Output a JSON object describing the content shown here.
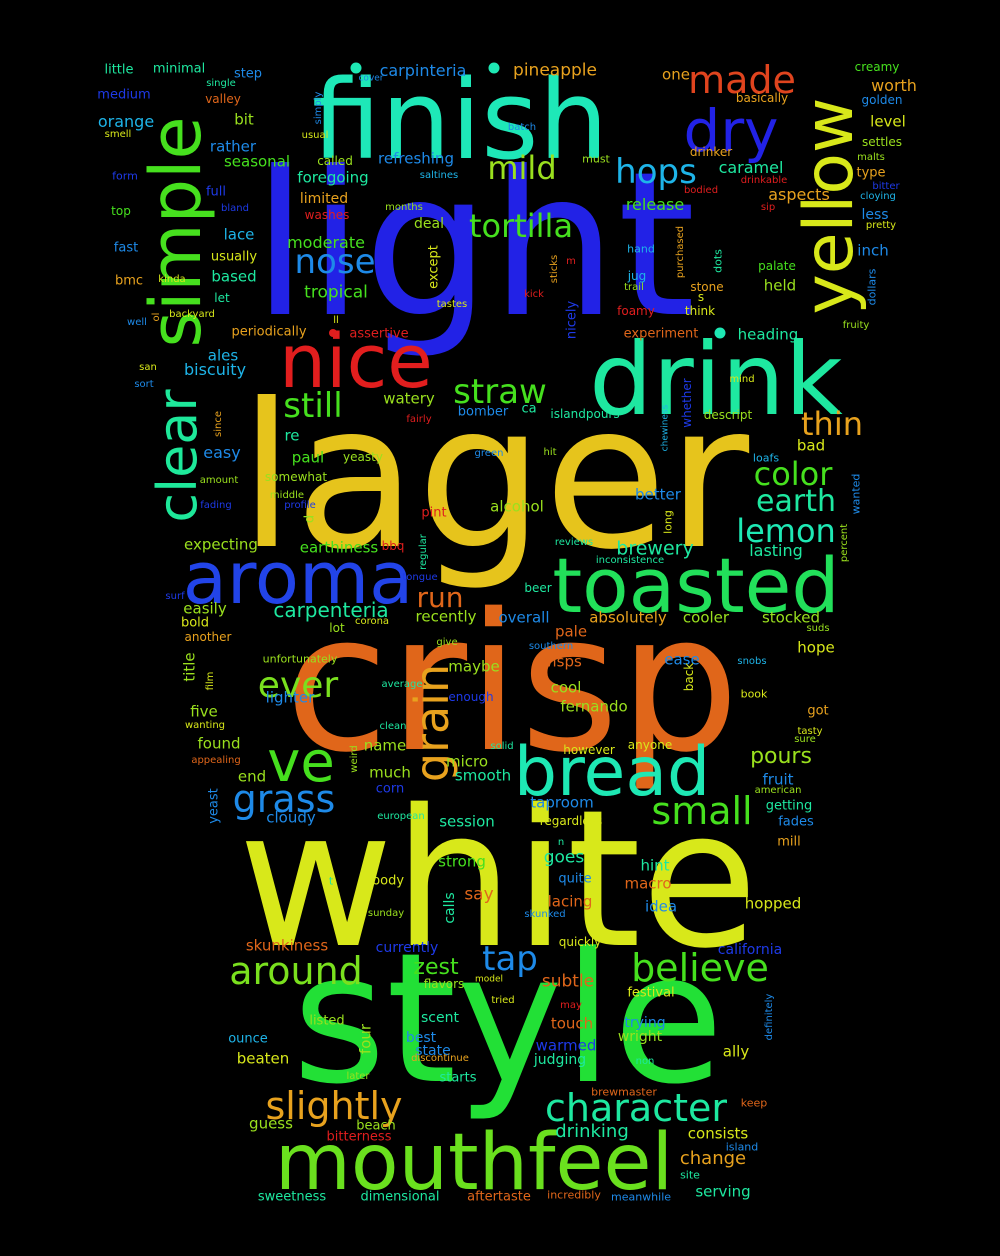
{
  "words": {
    "white": "white",
    "style": "style",
    "crisp": "crisp",
    "lager": "lager",
    "light": "light",
    "drink": "drink",
    "finish": "finish",
    "mouthfeel": "mouthfeel",
    "toasted": "toasted",
    "aroma": "aroma",
    "bread": "bread",
    "nice": "nice",
    "simple": "simple",
    "clear": "clear",
    "yellow": "yellow",
    "dry": "dry",
    "made": "made",
    "ve": "ve",
    "grass": "grass",
    "grain": "grain",
    "character": "character",
    "slightly": "slightly",
    "believe": "believe",
    "around": "around",
    "small": "small",
    "ever": "ever",
    "hops": "hops",
    "nose": "nose",
    "tortilla": "tortilla",
    "mild": "mild",
    "straw": "straw",
    "still": "still",
    "thin": "thin",
    "color": "color",
    "earth": "earth",
    "lemon": "lemon",
    "run": "run",
    "tap": "tap",
    "zest": "zest",
    "pours": "pours",
    "carpenteria": "carpenteria",
    "brewery": "brewery",
    "drinking": "drinking",
    "change": "change",
    "carpinteria": "carpinteria",
    "pineapple": "pineapple",
    "subtle": "subtle",
    "release": "release",
    "lasting": "lasting",
    "tropical": "tropical",
    "moderate": "moderate",
    "caramel": "caramel",
    "aspects": "aspects",
    "refreshing": "refreshing",
    "foregoing": "foregoing",
    "alcohol": "alcohol",
    "earthiness": "earthiness",
    "expecting": "expecting",
    "cooler": "cooler",
    "stocked": "stocked",
    "overall": "overall",
    "absolutely": "absolutely",
    "fernando": "fernando",
    "wisps": "wisps",
    "cool": "cool",
    "ease": "ease",
    "maybe": "maybe",
    "hope": "hope",
    "lighter": "lighter",
    "five": "five",
    "found": "found",
    "name": "name",
    "micro": "micro",
    "much": "much",
    "smooth": "smooth",
    "fruit": "fruit",
    "taproom": "taproom",
    "cloudy": "cloudy",
    "session": "session",
    "goes": "goes",
    "hint": "hint",
    "macro": "macro",
    "strong": "strong",
    "say": "say",
    "lacing": "lacing",
    "idea": "idea",
    "hopped": "hopped",
    "skunkiness": "skunkiness",
    "currently": "currently",
    "california": "california",
    "scent": "scent",
    "best": "best",
    "state": "state",
    "warmed": "warmed",
    "touch": "touch",
    "trying": "trying",
    "wright": "wright",
    "ally": "ally",
    "judging": "judging",
    "beaten": "beaten",
    "ounce": "ounce",
    "listed": "listed",
    "four": "four",
    "guess": "guess",
    "bitterness": "bitterness",
    "beach": "beach",
    "consists": "consists",
    "serving": "serving",
    "sweetness": "sweetness",
    "dimensional": "dimensional",
    "aftertaste": "aftertaste",
    "incredibly": "incredibly",
    "meanwhile": "meanwhile",
    "site": "site",
    "island": "island",
    "keep": "keep",
    "brewmaster": "brewmaster",
    "little": "little",
    "minimal": "minimal",
    "step": "step",
    "single": "single",
    "medium": "medium",
    "valley": "valley",
    "orange": "orange",
    "bit": "bit",
    "rather": "rather",
    "seasonal": "seasonal",
    "called": "called",
    "smell": "smell",
    "usual": "usual",
    "simply": "simply",
    "cover": "cover",
    "batch": "batch",
    "must": "must",
    "saltines": "saltines",
    "form": "form",
    "full": "full",
    "bland": "bland",
    "top": "top",
    "limited": "limited",
    "washes": "washes",
    "months": "months",
    "deal": "deal",
    "lace": "lace",
    "fast": "fast",
    "usually": "usually",
    "based": "based",
    "bmc": "bmc",
    "kinda": "kinda",
    "let": "let",
    "backyard": "backyard",
    "well": "well",
    "ol": "ol",
    "periodically": "periodically",
    "ll": "ll",
    "assertive": "assertive",
    "except": "except",
    "tastes": "tastes",
    "sticks": "sticks",
    "m": "m",
    "kick": "kick",
    "nicely": "nicely",
    "ales": "ales",
    "biscuity": "biscuity",
    "san": "san",
    "sort": "sort",
    "watery": "watery",
    "bomber": "bomber",
    "ca": "ca",
    "islandpours": "islandpours",
    "since": "since",
    "fairly": "fairly",
    "re": "re",
    "paul": "paul",
    "easy": "easy",
    "yeasty": "yeasty",
    "somewhat": "somewhat",
    "amount": "amount",
    "middle": "middle",
    "fading": "fading",
    "profile": "profile",
    "d": "d",
    "pint": "pint",
    "bbq": "bbq",
    "regular": "regular",
    "tongue": "tongue",
    "surf": "surf",
    "easily": "easily",
    "bold": "bold",
    "another": "another",
    "lot": "lot",
    "corona": "corona",
    "recently": "recently",
    "give": "give",
    "pale": "pale",
    "southern": "southern",
    "title": "title",
    "film": "film",
    "unfortunately": "unfortunately",
    "average": "average",
    "enough": "enough",
    "wanting": "wanting",
    "clean": "clean",
    "appealing": "appealing",
    "weird": "weird",
    "solid": "solid",
    "end": "end",
    "yeast": "yeast",
    "corn": "corn",
    "european": "european",
    "regardless": "regardless",
    "n": "n",
    "t": "t",
    "body": "body",
    "sunday": "sunday",
    "calls": "calls",
    "quite": "quite",
    "skunked": "skunked",
    "quickly": "quickly",
    "flavors": "flavors",
    "model": "model",
    "tried": "tried",
    "may": "may",
    "festival": "festival",
    "discontinue": "discontinue",
    "non": "non",
    "starts": "starts",
    "later": "later",
    "creamy": "creamy",
    "golden": "golden",
    "worth": "worth",
    "basically": "basically",
    "level": "level",
    "settles": "settles",
    "malts": "malts",
    "drinker": "drinker",
    "type": "type",
    "bodied": "bodied",
    "drinkable": "drinkable",
    "bitter": "bitter",
    "cloying": "cloying",
    "sip": "sip",
    "less": "less",
    "pretty": "pretty",
    "inch": "inch",
    "hand": "hand",
    "purchased": "purchased",
    "dots": "dots",
    "palate": "palate",
    "dollars": "dollars",
    "jug": "jug",
    "trail": "trail",
    "stone": "stone",
    "s": "s",
    "held": "held",
    "think": "think",
    "foamy": "foamy",
    "fruity": "fruity",
    "experiment": "experiment",
    "heading": "heading",
    "one": "one",
    "mind": "mind",
    "descript": "descript",
    "whether": "whether",
    "chewiness": "chewiness",
    "bad": "bad",
    "hit": "hit",
    "green": "green",
    "loafs": "loafs",
    "better": "better",
    "wanted": "wanted",
    "long": "long",
    "inconsistence": "inconsistence",
    "percent": "percent",
    "reviews": "reviews",
    "beer": "beer",
    "suds": "suds",
    "back": "back",
    "snobs": "snobs",
    "book": "book",
    "got": "got",
    "anyone": "anyone",
    "however": "however",
    "tasty": "tasty",
    "sure": "sure",
    "american": "american",
    "getting": "getting",
    "fades": "fades",
    "mill": "mill",
    "definitely": "definitely"
  },
  "colors": {
    "background": "#000000",
    "palette": [
      "#1e1ee8",
      "#e8c21a",
      "#e06a1a",
      "#e01e1e",
      "#1ee8b4",
      "#46e01e",
      "#d8e81a",
      "#1e8ae8",
      "#9ae01e",
      "#e8a21e",
      "#1eb4e8"
    ]
  }
}
